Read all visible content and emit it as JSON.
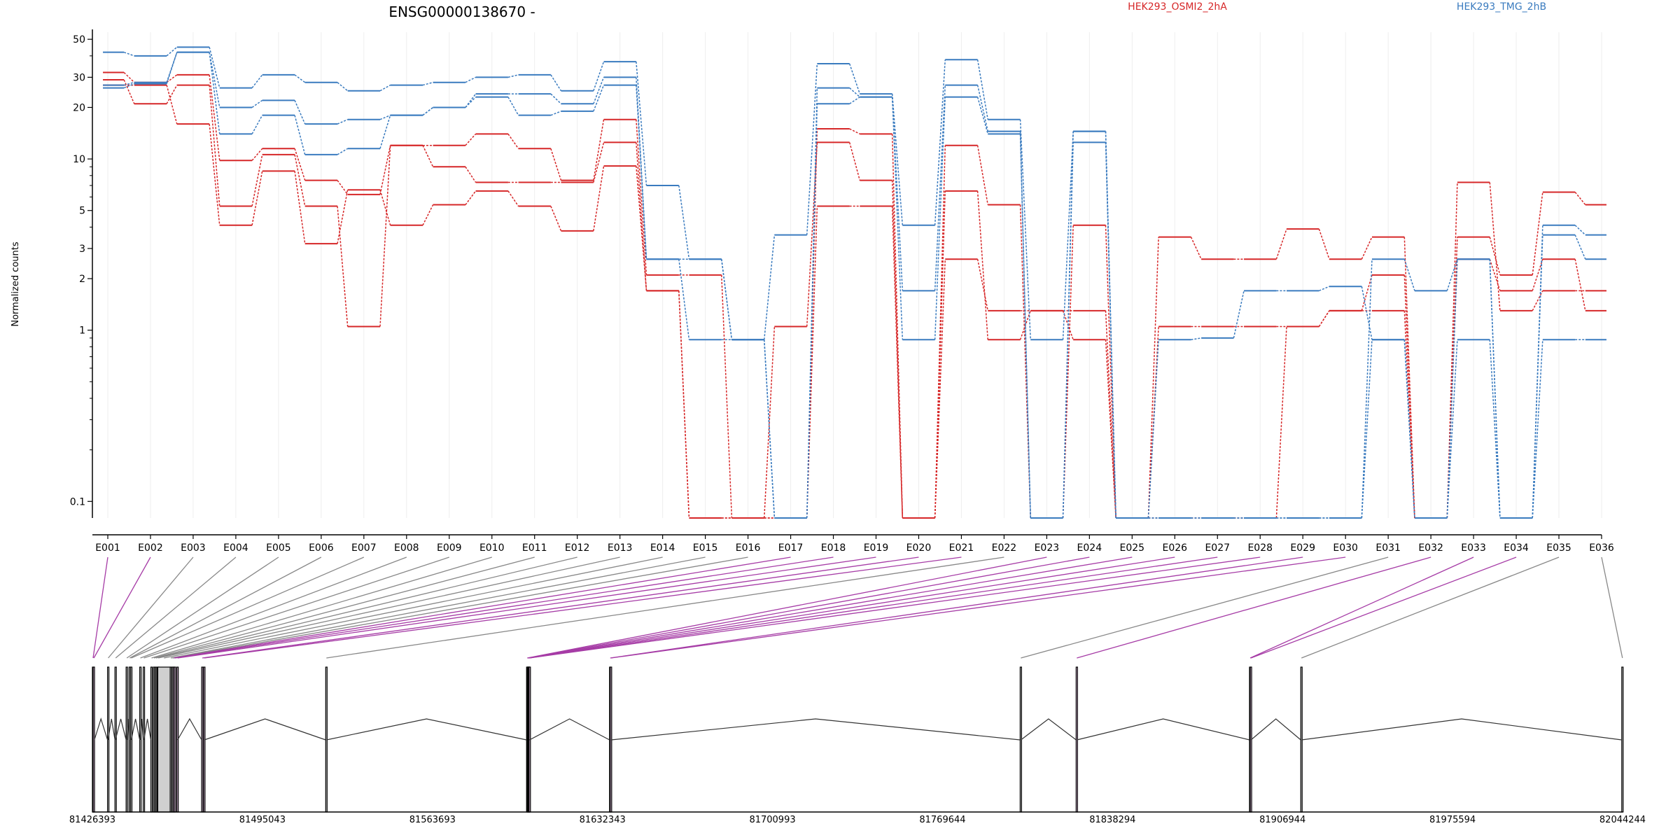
{
  "chart_data": [
    {
      "type": "line",
      "title": "ENSG00000138670 -",
      "ylabel": "Normalized counts",
      "xlabel": "",
      "y_scale": "log",
      "ylim": [
        0.08,
        55
      ],
      "y_ticks": [
        0.1,
        1,
        2,
        3,
        5,
        10,
        20,
        30,
        50
      ],
      "y_tick_labels": [
        "0.1",
        "1",
        "2",
        "3",
        "5",
        "10",
        "20",
        "30",
        "50"
      ],
      "categories": [
        "E001",
        "E002",
        "E003",
        "E004",
        "E005",
        "E006",
        "E007",
        "E008",
        "E009",
        "E010",
        "E011",
        "E012",
        "E013",
        "E014",
        "E015",
        "E016",
        "E017",
        "E018",
        "E019",
        "E020",
        "E021",
        "E022",
        "E023",
        "E024",
        "E025",
        "E026",
        "E027",
        "E028",
        "E029",
        "E030",
        "E031",
        "E032",
        "E033",
        "E034",
        "E035",
        "E036"
      ],
      "grid": "vertical",
      "legend_placement": "top",
      "series": [
        {
          "name": "HEK293_OSMI2_2hA",
          "color": "#d62728",
          "values": [
            32,
            28,
            31,
            9.8,
            11.5,
            7.5,
            6.2,
            12,
            12,
            14,
            11.5,
            7.5,
            17,
            2.1,
            2.1,
            0.08,
            0.08,
            15,
            14,
            0.08,
            12,
            5.4,
            0.08,
            4.1,
            0.08,
            3.5,
            2.6,
            2.6,
            3.9,
            2.6,
            3.5,
            0.08,
            3.5,
            2.1,
            6.4,
            5.4
          ]
        },
        {
          "name": "HEK293_OSMI2_2hA",
          "color": "#d62728",
          "values": [
            29,
            21,
            27,
            5.3,
            10.6,
            5.3,
            1.05,
            12,
            9,
            7.3,
            7.3,
            7.3,
            12.5,
            1.7,
            0.08,
            0.08,
            1.05,
            12.5,
            7.5,
            0.08,
            2.6,
            1.3,
            1.3,
            1.3,
            0.08,
            1.05,
            1.05,
            1.05,
            1.05,
            1.3,
            1.3,
            0.08,
            2.6,
            1.7,
            2.6,
            1.3
          ]
        },
        {
          "name": "HEK293_OSMI2_2hA",
          "color": "#d62728",
          "values": [
            27,
            27,
            16,
            4.1,
            8.5,
            3.2,
            6.6,
            4.1,
            5.4,
            6.5,
            5.3,
            3.8,
            9.1,
            1.7,
            0.08,
            0.08,
            0.08,
            5.3,
            5.3,
            0.08,
            6.5,
            0.88,
            1.3,
            0.88,
            0.08,
            0.08,
            0.08,
            0.08,
            1.05,
            1.3,
            2.1,
            0.08,
            7.3,
            1.3,
            1.7,
            1.7
          ]
        },
        {
          "name": "HEK293_TMG_2hB",
          "color": "#3a7bbf",
          "values": [
            42,
            40,
            45,
            26,
            31,
            28,
            25,
            27,
            28,
            30,
            31,
            25,
            37,
            7,
            2.6,
            0.88,
            3.6,
            36,
            24,
            4.1,
            38,
            17,
            0.88,
            14.5,
            0.08,
            0.88,
            0.9,
            1.7,
            1.7,
            1.8,
            0.88,
            0.08,
            2.6,
            0.08,
            4.1,
            3.6
          ]
        },
        {
          "name": "HEK293_TMG_2hB",
          "color": "#3a7bbf",
          "values": [
            27,
            28,
            42,
            20,
            22,
            16,
            17,
            18,
            20,
            24,
            24,
            21,
            30,
            2.6,
            2.6,
            0.88,
            0.08,
            26,
            23,
            1.7,
            27,
            14.5,
            0.08,
            14.5,
            0.08,
            0.08,
            0.08,
            0.08,
            0.08,
            0.08,
            2.6,
            1.7,
            2.6,
            0.08,
            3.6,
            2.6
          ]
        },
        {
          "name": "HEK293_TMG_2hB",
          "color": "#3a7bbf",
          "values": [
            26,
            27.5,
            42,
            14,
            18,
            10.6,
            11.5,
            18,
            20,
            23,
            18,
            19,
            27,
            2.6,
            0.88,
            0.88,
            0.08,
            21,
            23,
            0.88,
            23,
            14,
            0.08,
            12.5,
            0.08,
            0.08,
            0.08,
            0.08,
            0.08,
            0.08,
            0.88,
            0.08,
            0.88,
            0.08,
            0.88,
            0.88
          ]
        }
      ]
    },
    {
      "type": "diagram",
      "x_ticks": [
        81426393,
        81495043,
        81563693,
        81632343,
        81700993,
        81769644,
        81838294,
        81906944,
        81975594,
        82044244
      ],
      "x_tick_labels": [
        "81426393",
        "81495043",
        "81563693",
        "81632343",
        "81700993",
        "81769644",
        "81838294",
        "81906944",
        "81975594",
        "82044244"
      ],
      "xlim": [
        81426393,
        82044244
      ],
      "exons": [
        {
          "id": "E001",
          "start": 81426393,
          "end": 81426693,
          "highlight": true
        },
        {
          "id": "E002",
          "start": 81426693,
          "end": 81427193,
          "highlight": true
        },
        {
          "id": "E003",
          "start": 81432500,
          "end": 81432700,
          "highlight": false
        },
        {
          "id": "E004",
          "start": 81435500,
          "end": 81435700,
          "highlight": false
        },
        {
          "id": "E005",
          "start": 81440000,
          "end": 81440300,
          "highlight": false
        },
        {
          "id": "E006",
          "start": 81441200,
          "end": 81441500,
          "highlight": false
        },
        {
          "id": "E007",
          "start": 81441800,
          "end": 81442100,
          "highlight": false
        },
        {
          "id": "E008",
          "start": 81445500,
          "end": 81445800,
          "highlight": false
        },
        {
          "id": "E009",
          "start": 81446900,
          "end": 81447200,
          "highlight": false
        },
        {
          "id": "E010",
          "start": 81450000,
          "end": 81450300,
          "highlight": false
        },
        {
          "id": "E011",
          "start": 81451000,
          "end": 81451400,
          "highlight": false
        },
        {
          "id": "E012",
          "start": 81451800,
          "end": 81452200,
          "highlight": false
        },
        {
          "id": "E013",
          "start": 81452700,
          "end": 81453000,
          "highlight": false
        },
        {
          "id": "E014",
          "start": 81452800,
          "end": 81457800,
          "highlight": false
        },
        {
          "id": "E015",
          "start": 81457800,
          "end": 81458100,
          "highlight": false
        },
        {
          "id": "E016",
          "start": 81458500,
          "end": 81458800,
          "highlight": false
        },
        {
          "id": "E017",
          "start": 81459000,
          "end": 81459300,
          "highlight": true
        },
        {
          "id": "E018",
          "start": 81459500,
          "end": 81459800,
          "highlight": true
        },
        {
          "id": "E019",
          "start": 81460500,
          "end": 81460800,
          "highlight": true
        },
        {
          "id": "E020",
          "start": 81470500,
          "end": 81470800,
          "highlight": true
        },
        {
          "id": "E021",
          "start": 81471300,
          "end": 81471600,
          "highlight": true
        },
        {
          "id": "E022",
          "start": 81520600,
          "end": 81520900,
          "highlight": false
        },
        {
          "id": "E023",
          "start": 81601700,
          "end": 81601900,
          "highlight": true
        },
        {
          "id": "E024",
          "start": 81601900,
          "end": 81602100,
          "highlight": true
        },
        {
          "id": "E025",
          "start": 81602100,
          "end": 81602300,
          "highlight": true
        },
        {
          "id": "E026",
          "start": 81602300,
          "end": 81602500,
          "highlight": true
        },
        {
          "id": "E027",
          "start": 81602500,
          "end": 81602700,
          "highlight": true
        },
        {
          "id": "E028",
          "start": 81602700,
          "end": 81602900,
          "highlight": true
        },
        {
          "id": "E029",
          "start": 81635200,
          "end": 81635500,
          "highlight": true
        },
        {
          "id": "E030",
          "start": 81635500,
          "end": 81635800,
          "highlight": true
        },
        {
          "id": "E031",
          "start": 81801000,
          "end": 81801300,
          "highlight": false
        },
        {
          "id": "E032",
          "start": 81823600,
          "end": 81823900,
          "highlight": true
        },
        {
          "id": "E033",
          "start": 81893600,
          "end": 81893900,
          "highlight": true
        },
        {
          "id": "E034",
          "start": 81893900,
          "end": 81894200,
          "highlight": true
        },
        {
          "id": "E035",
          "start": 81914300,
          "end": 81914600,
          "highlight": false
        },
        {
          "id": "E036",
          "start": 82043900,
          "end": 82044244,
          "highlight": false
        }
      ]
    }
  ]
}
